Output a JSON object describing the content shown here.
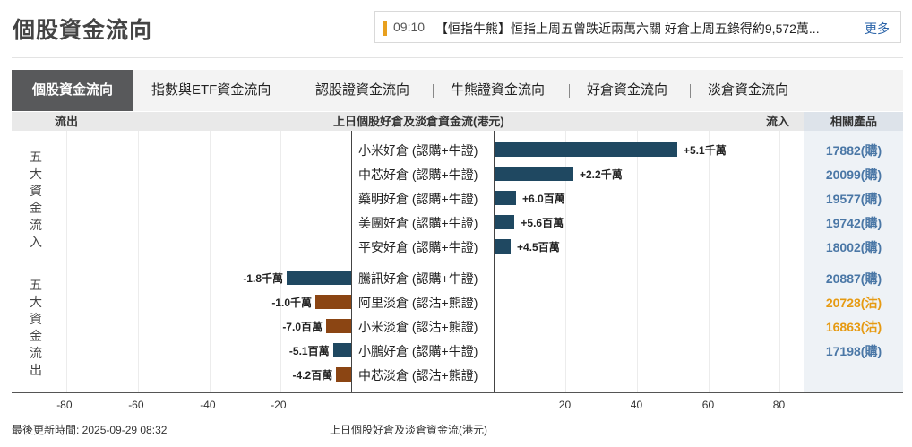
{
  "page_title": "個股資金流向",
  "news": {
    "time": "09:10",
    "text": "【恒指牛熊】恒指上周五曾跌近兩萬六關 好倉上周五錄得約9,572萬...",
    "more": "更多"
  },
  "tabs": [
    {
      "label": "個股資金流向",
      "active": true
    },
    {
      "label": "指數與ETF資金流向",
      "active": false
    },
    {
      "label": "認股證資金流向",
      "active": false
    },
    {
      "label": "牛熊證資金流向",
      "active": false
    },
    {
      "label": "好倉資金流向",
      "active": false
    },
    {
      "label": "淡倉資金流向",
      "active": false
    }
  ],
  "chart_header": {
    "outflow": "流出",
    "title": "上日個股好倉及淡倉資金流(港元)",
    "inflow": "流入",
    "related": "相關產品"
  },
  "group_labels": {
    "inflow": "五大資金流入",
    "outflow": "五大資金流出"
  },
  "colors": {
    "bull": "#1f4861",
    "bear": "#8b4513",
    "product_bull": "#4a77a6",
    "product_bear": "#e69a12"
  },
  "chart_data": {
    "type": "bar",
    "orientation": "horizontal",
    "xlabel": "上日個股好倉及淡倉資金流(港元)",
    "xlim": [
      -80,
      80
    ],
    "xticks": [
      "-80",
      "-60",
      "-40",
      "-20",
      "20",
      "40",
      "60",
      "80"
    ],
    "value_unit_note": "",
    "rows": [
      {
        "name": "小米好倉 (認購+牛證)",
        "value": 51,
        "label": "+5.1千萬",
        "kind": "bull",
        "product": "17882(購)",
        "group": "inflow"
      },
      {
        "name": "中芯好倉 (認購+牛證)",
        "value": 22,
        "label": "+2.2千萬",
        "kind": "bull",
        "product": "20099(購)",
        "group": "inflow"
      },
      {
        "name": "藥明好倉 (認購+牛證)",
        "value": 6.0,
        "label": "+6.0百萬",
        "kind": "bull",
        "product": "19577(購)",
        "group": "inflow"
      },
      {
        "name": "美團好倉 (認購+牛證)",
        "value": 5.6,
        "label": "+5.6百萬",
        "kind": "bull",
        "product": "19742(購)",
        "group": "inflow"
      },
      {
        "name": "平安好倉 (認購+牛證)",
        "value": 4.5,
        "label": "+4.5百萬",
        "kind": "bull",
        "product": "18002(購)",
        "group": "inflow"
      },
      {
        "name": "騰訊好倉 (認購+牛證)",
        "value": -18,
        "label": "-1.8千萬",
        "kind": "bull",
        "product": "20887(購)",
        "group": "outflow"
      },
      {
        "name": "阿里淡倉 (認沽+熊證)",
        "value": -10,
        "label": "-1.0千萬",
        "kind": "bear",
        "product": "20728(沽)",
        "group": "outflow"
      },
      {
        "name": "小米淡倉 (認沽+熊證)",
        "value": -7.0,
        "label": "-7.0百萬",
        "kind": "bear",
        "product": "16863(沽)",
        "group": "outflow"
      },
      {
        "name": "小鵬好倉 (認購+牛證)",
        "value": -5.1,
        "label": "-5.1百萬",
        "kind": "bull",
        "product": "17198(購)",
        "group": "outflow"
      },
      {
        "name": "中芯淡倉 (認沽+熊證)",
        "value": -4.2,
        "label": "-4.2百萬",
        "kind": "bear",
        "product": "",
        "group": "outflow"
      }
    ]
  },
  "footer": {
    "updated": "最後更新時間: 2025-09-29 08:32",
    "axis_caption": "上日個股好倉及淡倉資金流(港元)"
  }
}
